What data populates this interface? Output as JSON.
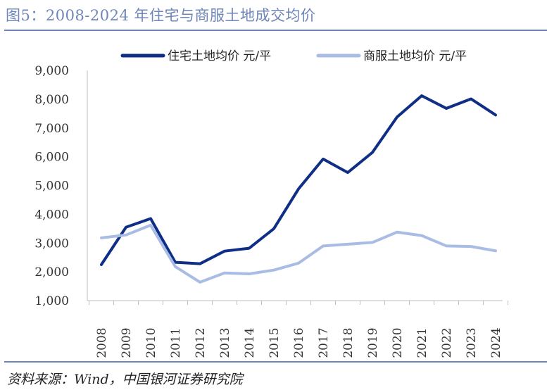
{
  "header": {
    "title": "图5：2008-2024 年住宅与商服土地成交均价"
  },
  "footer": {
    "source": "资料来源：Wind，中国银河证券研究院"
  },
  "chart_data": {
    "type": "line",
    "categories": [
      "2008",
      "2009",
      "2010",
      "2011",
      "2012",
      "2013",
      "2014",
      "2015",
      "2016",
      "2017",
      "2018",
      "2019",
      "2020",
      "2021",
      "2022",
      "2023",
      "2024"
    ],
    "ylim": [
      1000,
      9000
    ],
    "yticks": [
      "1,000",
      "2,000",
      "3,000",
      "4,000",
      "5,000",
      "6,000",
      "7,000",
      "8,000",
      "9,000"
    ],
    "legend_position": "top",
    "grid": false,
    "series": [
      {
        "name": "住宅土地均价 元/平",
        "color": "#0f2e86",
        "values": [
          2250,
          3550,
          3850,
          2330,
          2280,
          2720,
          2820,
          3500,
          4880,
          5920,
          5450,
          6150,
          7380,
          8120,
          7680,
          8010,
          7450
        ]
      },
      {
        "name": "商服土地均价 元/平",
        "color": "#a9bce4",
        "values": [
          3180,
          3280,
          3620,
          2180,
          1640,
          1960,
          1930,
          2060,
          2300,
          2900,
          2960,
          3020,
          3380,
          3260,
          2900,
          2880,
          2730
        ]
      }
    ]
  }
}
